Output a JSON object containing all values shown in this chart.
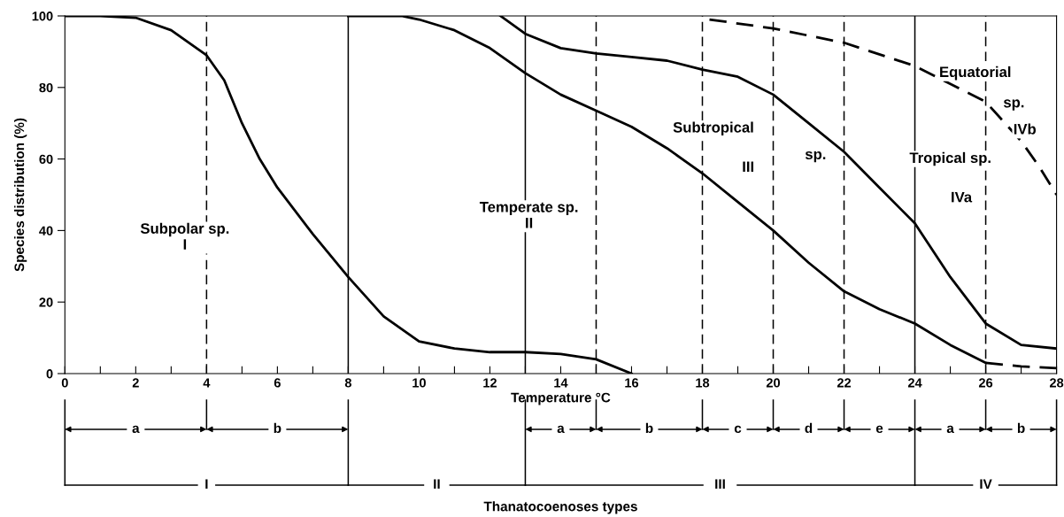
{
  "chart_data": [
    {
      "type": "line",
      "xlabel": "Temperature °C",
      "ylabel": "Species distribution (%)",
      "xlim": [
        0,
        28
      ],
      "ylim": [
        0,
        100
      ],
      "xticks": [
        0,
        {
          "value": 1,
          "label": null
        },
        2,
        {
          "value": 3,
          "label": null
        },
        4,
        {
          "value": 5,
          "label": null
        },
        6,
        {
          "value": 7,
          "label": null
        },
        8,
        {
          "value": 9,
          "label": null
        },
        10,
        {
          "value": 11,
          "label": null
        },
        12,
        {
          "value": 13,
          "label": null
        },
        14,
        {
          "value": 15,
          "label": null
        },
        16,
        {
          "value": 17,
          "label": null
        },
        18,
        {
          "value": 19,
          "label": null
        },
        20,
        {
          "value": 21,
          "label": null
        },
        22,
        {
          "value": 23,
          "label": null
        },
        24,
        {
          "value": 25,
          "label": null
        },
        26,
        {
          "value": 27,
          "label": null
        },
        28
      ],
      "yticks": [
        0,
        20,
        40,
        60,
        80,
        100
      ],
      "grid": false,
      "legend": false,
      "marker": "none",
      "series": [
        {
          "color": "#000000",
          "line_style": "solid",
          "x": [
            0,
            1,
            2,
            3,
            4,
            4.5,
            5,
            5.5,
            6,
            7,
            8,
            9,
            10,
            11,
            12,
            13,
            14,
            15,
            16
          ],
          "values": [
            100,
            100,
            99.5,
            96,
            89,
            82,
            70,
            60,
            52,
            39,
            27,
            16,
            9,
            7,
            6,
            6,
            5.5,
            4,
            0
          ]
        },
        {
          "color": "#000000",
          "line_style": "solid",
          "x": [
            8,
            9,
            9.5,
            10,
            11,
            12,
            13,
            14,
            15,
            16,
            17,
            18,
            19,
            20,
            21,
            22,
            23,
            24,
            25,
            26
          ],
          "values": [
            100,
            100,
            100,
            99,
            96,
            91,
            84,
            78,
            73.5,
            69,
            63,
            56,
            48,
            40,
            31,
            23,
            18,
            14,
            8,
            3
          ]
        },
        {
          "color": "#000000",
          "line_style": "dashed",
          "x": [
            26,
            27,
            28
          ],
          "values": [
            3,
            2,
            1.5
          ]
        },
        {
          "color": "#000000",
          "line_style": "solid",
          "x": [
            12.3,
            13,
            14,
            15,
            16,
            17,
            18,
            19,
            20,
            21,
            22,
            23,
            24,
            25,
            26,
            27,
            28
          ],
          "values": [
            100,
            95,
            91,
            89.5,
            88.5,
            87.5,
            85,
            83,
            78,
            70,
            62,
            52,
            42,
            27,
            14,
            8,
            7
          ]
        },
        {
          "color": "#000000",
          "line_style": "dashed",
          "x": [
            18.2,
            20,
            22,
            24,
            26,
            27,
            27.5,
            28
          ],
          "values": [
            99,
            96.5,
            92.5,
            86,
            76,
            65,
            58,
            50
          ]
        }
      ],
      "ref_lines": [
        {
          "axis": "x",
          "value": 4,
          "line_style": "dashed",
          "color": "#000000"
        },
        {
          "axis": "x",
          "value": 8,
          "line_style": "solid",
          "color": "#000000"
        },
        {
          "axis": "x",
          "value": 13,
          "line_style": "solid",
          "color": "#000000"
        },
        {
          "axis": "x",
          "value": 15,
          "line_style": "dashed",
          "color": "#000000"
        },
        {
          "axis": "x",
          "value": 18,
          "line_style": "dashed",
          "color": "#000000"
        },
        {
          "axis": "x",
          "value": 20,
          "line_style": "dashed",
          "color": "#000000"
        },
        {
          "axis": "x",
          "value": 22,
          "line_style": "dashed",
          "color": "#000000"
        },
        {
          "axis": "x",
          "value": 24,
          "line_style": "solid",
          "color": "#000000"
        },
        {
          "axis": "x",
          "value": 26,
          "line_style": "dashed",
          "color": "#000000"
        }
      ],
      "annotations": [
        "Subpolar sp.\nI",
        "Temperate sp.\nII",
        "Subtropical",
        "sp.",
        "III",
        "Tropical sp.",
        "IVa",
        "Equatorial",
        "sp.",
        "IVb"
      ]
    },
    {
      "type": "other",
      "annotations": [
        "a",
        "b",
        "a",
        "b",
        "c",
        "d",
        "e",
        "a",
        "b",
        "I",
        "II",
        "III",
        "IV",
        "Thanatocoenoses types"
      ]
    }
  ]
}
